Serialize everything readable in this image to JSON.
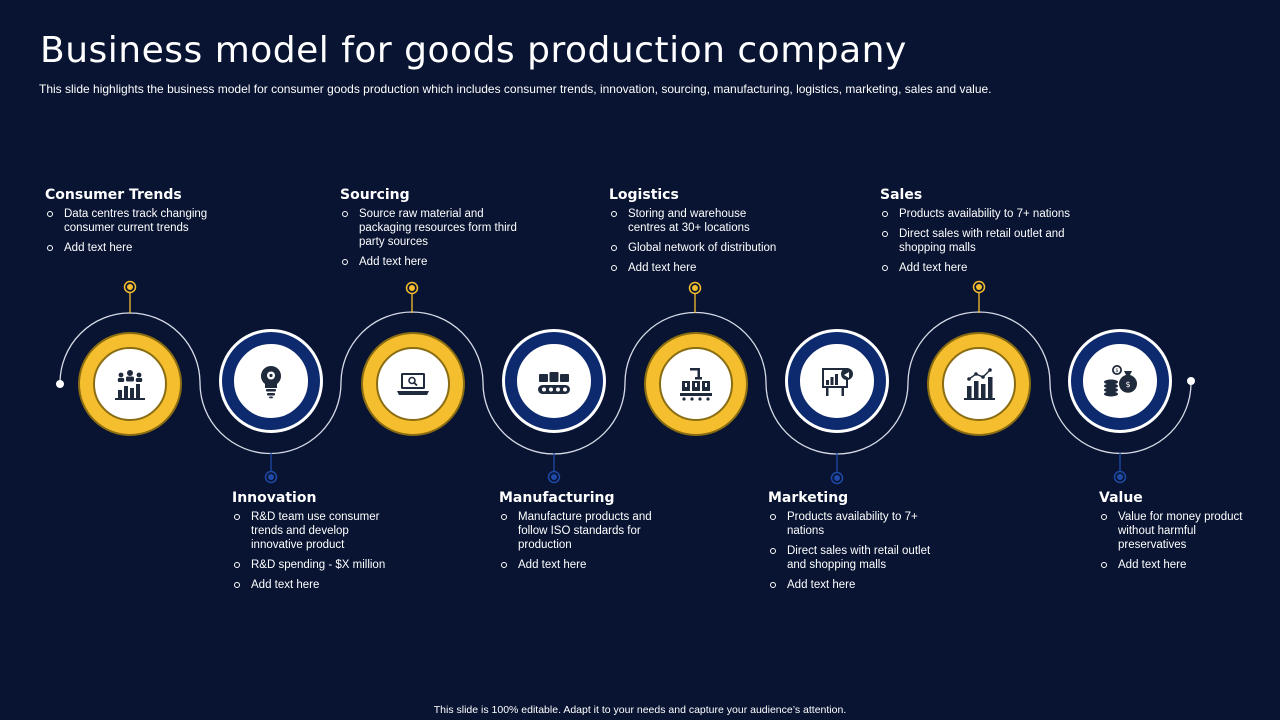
{
  "title": "Business model for goods production company",
  "subtitle": "This slide highlights the business model for consumer goods production which includes consumer trends, innovation, sourcing, manufacturing, logistics, marketing, sales and value.",
  "footer": "This slide is 100% editable.  Adapt it to your needs and capture your audience’s attention.",
  "colors": {
    "background": "#081432",
    "gold": "#f5be2e",
    "navy": "#0d2a6e",
    "text": "#ffffff"
  },
  "steps": [
    {
      "title": "Consumer Trends",
      "icon": "people-chart-icon",
      "style": "gold",
      "bullets": [
        "Data centres track changing consumer current trends",
        "Add text here"
      ]
    },
    {
      "title": "Innovation",
      "icon": "lightbulb-gear-icon",
      "style": "navy",
      "bullets": [
        "R&D team use consumer trends and develop innovative product",
        "R&D spending - $X million",
        "Add text here"
      ]
    },
    {
      "title": "Sourcing",
      "icon": "laptop-search-icon",
      "style": "gold",
      "bullets": [
        "Source raw material and packaging resources form third party sources",
        "Add text here"
      ]
    },
    {
      "title": "Manufacturing",
      "icon": "conveyor-belt-icon",
      "style": "navy",
      "bullets": [
        "Manufacture products and follow ISO standards for production",
        "Add text here"
      ]
    },
    {
      "title": "Logistics",
      "icon": "robotic-arm-boxes-icon",
      "style": "gold",
      "bullets": [
        "Storing and warehouse centres at 30+ locations",
        "Global network of distribution",
        "Add text here"
      ]
    },
    {
      "title": "Marketing",
      "icon": "billboard-megaphone-icon",
      "style": "navy",
      "bullets": [
        "Products availability to 7+ nations",
        "Direct sales with retail outlet and shopping malls",
        "Add text here"
      ]
    },
    {
      "title": "Sales",
      "icon": "bar-chart-growth-icon",
      "style": "gold",
      "bullets": [
        "Products availability to 7+ nations",
        "Direct sales with retail outlet and shopping malls",
        "Add text here"
      ]
    },
    {
      "title": "Value",
      "icon": "coins-money-bag-icon",
      "style": "navy",
      "bullets": [
        "Value for money product without harmful preservatives",
        "Add text here"
      ]
    }
  ]
}
